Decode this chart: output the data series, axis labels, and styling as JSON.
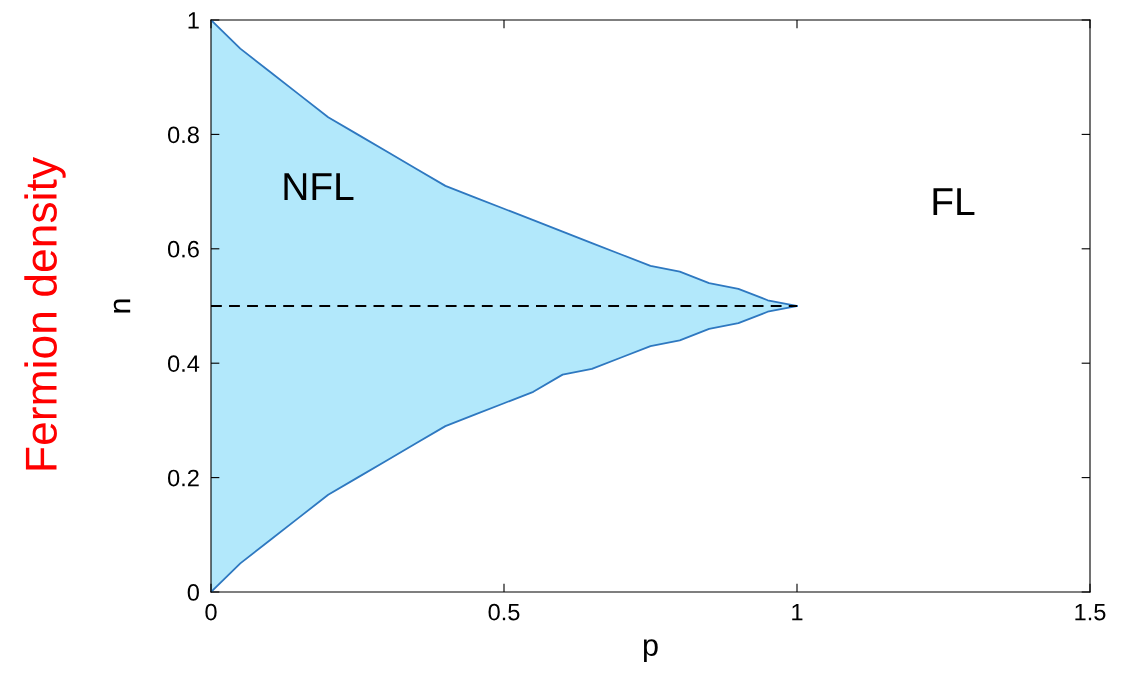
{
  "chart_data": {
    "type": "line",
    "xlabel": "p",
    "ylabel": "n",
    "x": [
      0,
      0.05,
      0.1,
      0.15,
      0.2,
      0.25,
      0.3,
      0.35,
      0.4,
      0.45,
      0.5,
      0.55,
      0.6,
      0.65,
      0.7,
      0.75,
      0.8,
      0.85,
      0.9,
      0.95,
      1
    ],
    "series": [
      {
        "color": "#2e78c0",
        "values": [
          1,
          0.95,
          0.91,
          0.87,
          0.83,
          0.8,
          0.77,
          0.74,
          0.71,
          0.69,
          0.67,
          0.65,
          0.63,
          0.61,
          0.59,
          0.57,
          0.56,
          0.54,
          0.53,
          0.51,
          0.5
        ],
        "lower": [
          0,
          0.05,
          0.09,
          0.13,
          0.17,
          0.2,
          0.23,
          0.26,
          0.29,
          0.31,
          0.33,
          0.35,
          0.38,
          0.39,
          0.41,
          0.43,
          0.44,
          0.46,
          0.47,
          0.49,
          0.5
        ],
        "upper": [
          1,
          0.95,
          0.91,
          0.87,
          0.83,
          0.8,
          0.77,
          0.74,
          0.71,
          0.69,
          0.67,
          0.65,
          0.63,
          0.61,
          0.59,
          0.57,
          0.56,
          0.54,
          0.53,
          0.51,
          0.5
        ]
      },
      {
        "color": "#2e78c0",
        "values": [
          0,
          0.05,
          0.09,
          0.13,
          0.17,
          0.2,
          0.23,
          0.26,
          0.29,
          0.31,
          0.33,
          0.35,
          0.38,
          0.39,
          0.41,
          0.43,
          0.44,
          0.46,
          0.47,
          0.49,
          0.5
        ]
      },
      {
        "color": "#000000",
        "x": [
          0,
          1
        ],
        "values": [
          0.5,
          0.5
        ],
        "line_style": "dashed"
      }
    ],
    "xlim": [
      0,
      1.5
    ],
    "xticks": [
      0,
      0.5,
      1,
      1.5
    ],
    "ylim": [
      0,
      1
    ],
    "yticks": [
      0,
      0.2,
      0.4,
      0.6,
      0.8,
      1
    ],
    "grid": false,
    "legend": false,
    "annotations": [
      "NFL",
      "FL",
      "Fermion density"
    ]
  }
}
